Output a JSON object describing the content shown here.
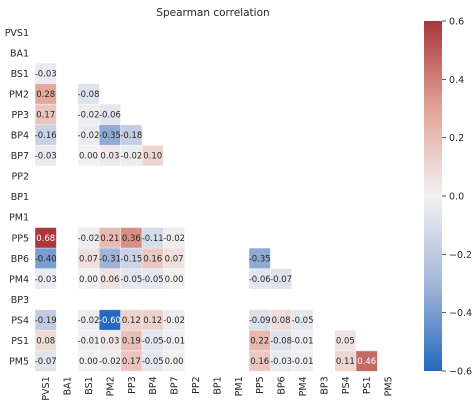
{
  "chart_data": {
    "type": "heatmap",
    "title": "Spearman correlation",
    "xlabel": "",
    "ylabel": "",
    "rows": [
      "PVS1",
      "BA1",
      "BS1",
      "PM2",
      "PP3",
      "BP4",
      "BP7",
      "PP2",
      "BP1",
      "PM1",
      "PP5",
      "BP6",
      "PM4",
      "BP3",
      "PS4",
      "PS1",
      "PM5"
    ],
    "columns": [
      "PVS1",
      "BA1",
      "BS1",
      "PM2",
      "PP3",
      "BP4",
      "BP7",
      "PP2",
      "BP1",
      "PM1",
      "PP5",
      "BP6",
      "PM4",
      "BP3",
      "PS4",
      "PS1",
      "PM5"
    ],
    "mask": "upper-triangle including diagonal",
    "values": [
      [
        null,
        null,
        null,
        null,
        null,
        null,
        null,
        null,
        null,
        null,
        null,
        null,
        null,
        null,
        null,
        null,
        null
      ],
      [
        null,
        null,
        null,
        null,
        null,
        null,
        null,
        null,
        null,
        null,
        null,
        null,
        null,
        null,
        null,
        null,
        null
      ],
      [
        -0.03,
        null,
        null,
        null,
        null,
        null,
        null,
        null,
        null,
        null,
        null,
        null,
        null,
        null,
        null,
        null,
        null
      ],
      [
        0.28,
        null,
        -0.08,
        null,
        null,
        null,
        null,
        null,
        null,
        null,
        null,
        null,
        null,
        null,
        null,
        null,
        null
      ],
      [
        0.17,
        null,
        -0.02,
        -0.06,
        null,
        null,
        null,
        null,
        null,
        null,
        null,
        null,
        null,
        null,
        null,
        null,
        null
      ],
      [
        -0.16,
        null,
        -0.02,
        -0.35,
        -0.18,
        null,
        null,
        null,
        null,
        null,
        null,
        null,
        null,
        null,
        null,
        null,
        null
      ],
      [
        -0.03,
        null,
        -0.0,
        0.03,
        -0.02,
        0.1,
        null,
        null,
        null,
        null,
        null,
        null,
        null,
        null,
        null,
        null,
        null
      ],
      [
        null,
        null,
        null,
        null,
        null,
        null,
        null,
        null,
        null,
        null,
        null,
        null,
        null,
        null,
        null,
        null,
        null
      ],
      [
        null,
        null,
        null,
        null,
        null,
        null,
        null,
        null,
        null,
        null,
        null,
        null,
        null,
        null,
        null,
        null,
        null
      ],
      [
        null,
        null,
        null,
        null,
        null,
        null,
        null,
        null,
        null,
        null,
        null,
        null,
        null,
        null,
        null,
        null,
        null
      ],
      [
        0.68,
        null,
        -0.02,
        0.21,
        0.36,
        -0.11,
        -0.02,
        null,
        null,
        null,
        null,
        null,
        null,
        null,
        null,
        null,
        null
      ],
      [
        -0.4,
        null,
        0.07,
        -0.31,
        -0.15,
        0.16,
        0.07,
        null,
        null,
        null,
        -0.35,
        null,
        null,
        null,
        null,
        null,
        null
      ],
      [
        -0.03,
        null,
        -0.0,
        0.06,
        -0.05,
        -0.05,
        -0.0,
        null,
        null,
        null,
        -0.06,
        -0.07,
        null,
        null,
        null,
        null,
        null
      ],
      [
        null,
        null,
        null,
        null,
        null,
        null,
        null,
        null,
        null,
        null,
        null,
        null,
        null,
        null,
        null,
        null,
        null
      ],
      [
        -0.19,
        null,
        -0.02,
        -0.6,
        0.12,
        0.12,
        -0.02,
        null,
        null,
        null,
        -0.09,
        0.08,
        -0.05,
        null,
        null,
        null,
        null
      ],
      [
        0.08,
        null,
        -0.01,
        0.03,
        0.19,
        -0.05,
        -0.01,
        null,
        null,
        null,
        0.22,
        -0.08,
        -0.01,
        null,
        0.05,
        null,
        null
      ],
      [
        -0.07,
        null,
        -0.0,
        -0.02,
        0.17,
        -0.05,
        -0.0,
        null,
        null,
        null,
        0.16,
        -0.03,
        -0.01,
        null,
        0.11,
        0.46,
        null
      ]
    ],
    "vmin": -0.6,
    "vmax": 0.6,
    "colormap": {
      "name": "vlag",
      "stops": [
        {
          "v": -0.6,
          "color": "#2369bd"
        },
        {
          "v": -0.3,
          "color": "#a4b7d9"
        },
        {
          "v": 0.0,
          "color": "#f2f1f2"
        },
        {
          "v": 0.3,
          "color": "#e3a496"
        },
        {
          "v": 0.6,
          "color": "#a9373b"
        }
      ]
    },
    "colorbar_ticks": [
      0.6,
      0.4,
      0.2,
      0.0,
      -0.2,
      -0.4,
      -0.6
    ],
    "colorbar_tick_labels": [
      "0.6",
      "0.4",
      "0.2",
      "0.0",
      "−0.2",
      "−0.4",
      "−0.6"
    ],
    "grid": false,
    "legend": "colorbar-right"
  }
}
